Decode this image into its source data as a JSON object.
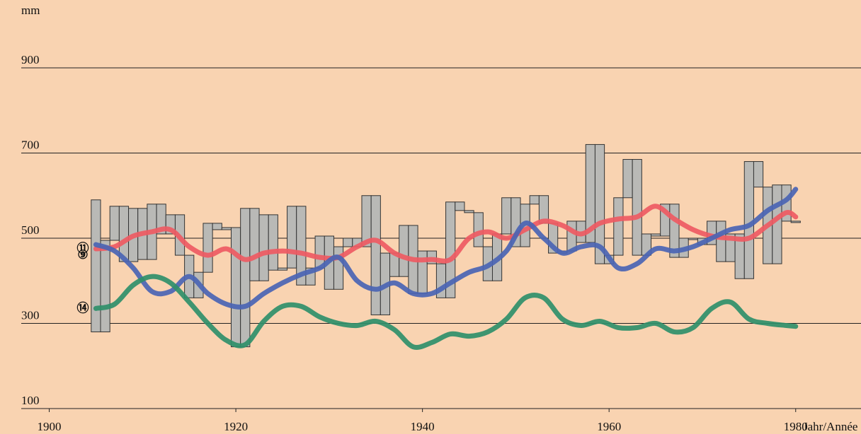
{
  "chart_data": {
    "type": "line",
    "y_label": "mm",
    "x_label": "Jahr/Année",
    "xlim": [
      1897,
      1987
    ],
    "xticks": [
      1900,
      1920,
      1940,
      1960,
      1980
    ],
    "ylim": [
      100,
      1050
    ],
    "yticks": [
      100,
      300,
      500,
      700,
      900
    ],
    "grid": true,
    "annual": {
      "color": "#b9b9b6",
      "x": [
        1905,
        1906,
        1907,
        1908,
        1909,
        1910,
        1911,
        1912,
        1913,
        1914,
        1915,
        1916,
        1917,
        1918,
        1919,
        1920,
        1921,
        1922,
        1923,
        1924,
        1925,
        1926,
        1927,
        1928,
        1929,
        1930,
        1931,
        1932,
        1933,
        1934,
        1935,
        1936,
        1937,
        1938,
        1939,
        1940,
        1941,
        1942,
        1943,
        1944,
        1945,
        1946,
        1947,
        1948,
        1949,
        1950,
        1951,
        1952,
        1953,
        1954,
        1955,
        1956,
        1957,
        1958,
        1959,
        1960,
        1961,
        1962,
        1963,
        1964,
        1965,
        1966,
        1967,
        1968,
        1969,
        1970,
        1971,
        1972,
        1973,
        1974,
        1975,
        1976,
        1977,
        1978,
        1979,
        1980
      ],
      "values": [
        590,
        280,
        495,
        575,
        445,
        570,
        450,
        580,
        510,
        555,
        460,
        360,
        420,
        535,
        520,
        525,
        245,
        570,
        400,
        555,
        425,
        430,
        575,
        390,
        430,
        505,
        380,
        480,
        500,
        480,
        600,
        320,
        465,
        410,
        530,
        370,
        470,
        440,
        360,
        585,
        565,
        560,
        480,
        400,
        510,
        595,
        480,
        580,
        600,
        535,
        465,
        470,
        540,
        490,
        720,
        440,
        460,
        595,
        685,
        460,
        510,
        505,
        580,
        455,
        500,
        500,
        485,
        540,
        445,
        510,
        405,
        680,
        620,
        440,
        625,
        540
      ]
    },
    "x": [
      1905,
      1907,
      1909,
      1911,
      1913,
      1915,
      1917,
      1919,
      1921,
      1923,
      1925,
      1927,
      1929,
      1931,
      1933,
      1935,
      1937,
      1939,
      1941,
      1943,
      1945,
      1947,
      1949,
      1951,
      1953,
      1955,
      1957,
      1959,
      1961,
      1963,
      1965,
      1967,
      1969,
      1971,
      1973,
      1975,
      1977,
      1979,
      1980
    ],
    "series": [
      {
        "name": "⑪",
        "color": "#ee5a63",
        "values": [
          475,
          480,
          505,
          515,
          520,
          480,
          460,
          475,
          450,
          465,
          470,
          465,
          455,
          455,
          480,
          495,
          465,
          450,
          450,
          450,
          500,
          515,
          500,
          520,
          540,
          530,
          510,
          535,
          545,
          550,
          575,
          545,
          520,
          505,
          500,
          500,
          530,
          560,
          550
        ]
      },
      {
        "name": "⑨",
        "color": "#4a64b4",
        "values": [
          485,
          470,
          430,
          375,
          375,
          410,
          370,
          345,
          340,
          370,
          395,
          415,
          430,
          455,
          400,
          380,
          395,
          370,
          370,
          395,
          420,
          435,
          470,
          535,
          500,
          465,
          480,
          480,
          430,
          440,
          475,
          470,
          480,
          500,
          520,
          530,
          565,
          590,
          615
        ]
      },
      {
        "name": "⑭",
        "color": "#2f8f6a",
        "values": [
          335,
          345,
          390,
          410,
          395,
          350,
          300,
          260,
          250,
          305,
          340,
          340,
          315,
          300,
          295,
          305,
          285,
          245,
          255,
          275,
          270,
          280,
          310,
          360,
          360,
          310,
          295,
          305,
          290,
          290,
          300,
          280,
          290,
          335,
          350,
          310,
          300,
          295,
          293
        ]
      }
    ]
  }
}
